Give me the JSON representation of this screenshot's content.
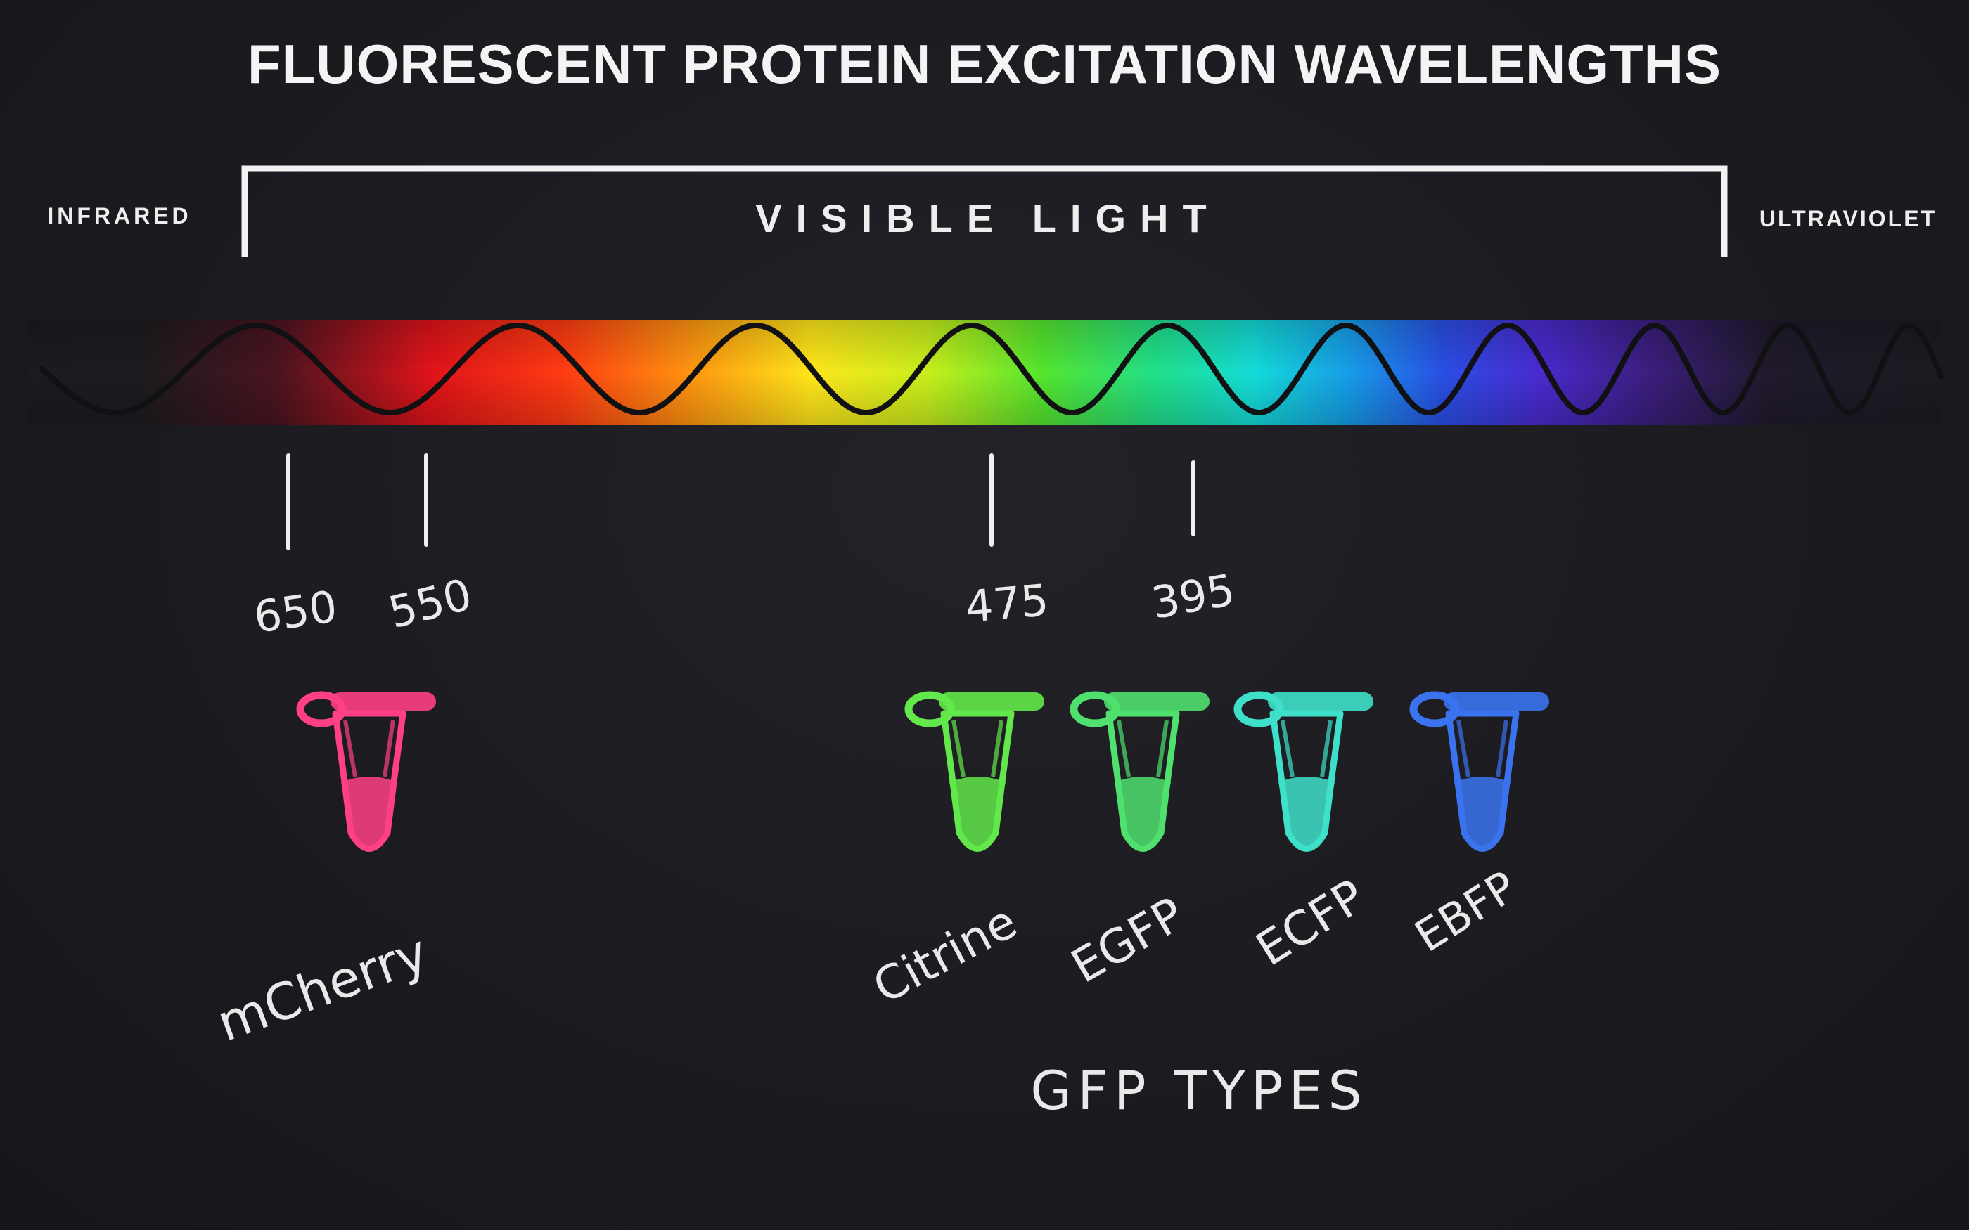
{
  "title": "FLUORESCENT PROTEIN EXCITATION WAVELENGTHS",
  "spectrum": {
    "left_label": "INFRARED",
    "center_label": "VISIBLE LIGHT",
    "right_label": "ULTRAVIOLET"
  },
  "markers": [
    {
      "value": "650"
    },
    {
      "value": "550"
    },
    {
      "value": "475"
    },
    {
      "value": "395"
    }
  ],
  "proteins": [
    {
      "name": "mCherry",
      "color": "#ff3f86"
    },
    {
      "name": "Citrine",
      "color": "#62e84a"
    },
    {
      "name": "EGFP",
      "color": "#4fe06e"
    },
    {
      "name": "ECFP",
      "color": "#3fe0c9"
    },
    {
      "name": "EBFP",
      "color": "#3b73ee"
    }
  ],
  "group_label": "GFP TYPES"
}
